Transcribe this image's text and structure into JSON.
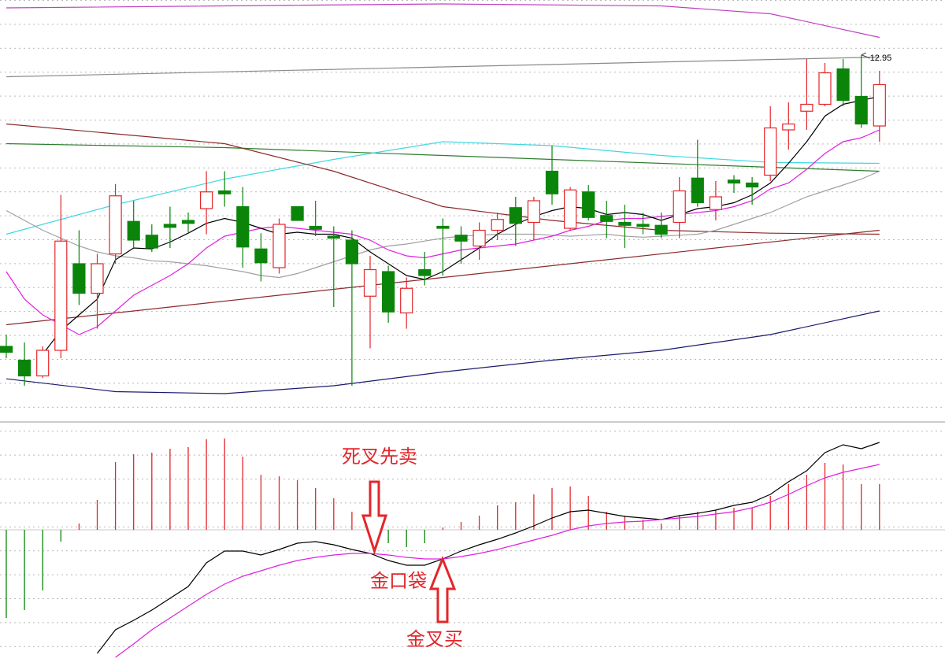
{
  "chart_data": [
    {
      "type": "candlestick",
      "categories": [
        null,
        null,
        null,
        null,
        null,
        null,
        null,
        null,
        null,
        null,
        null,
        null,
        null,
        null,
        null,
        null,
        null,
        null,
        null,
        null,
        null,
        null,
        null,
        null,
        null,
        null,
        null,
        null,
        null,
        null,
        null,
        null,
        null,
        null,
        null,
        null,
        null,
        null,
        null,
        null,
        null,
        null,
        null,
        null,
        null,
        null,
        null,
        null,
        null
      ],
      "open": [
        9.99,
        9.85,
        9.69,
        9.95,
        10.83,
        10.53,
        10.93,
        11.26,
        11.12,
        11.23,
        11.27,
        11.39,
        11.57,
        11.41,
        10.98,
        10.79,
        11.41,
        11.21,
        11.11,
        11.07,
        10.5,
        10.75,
        10.33,
        10.77,
        11.21,
        11.12,
        11.01,
        11.17,
        11.4,
        11.25,
        11.77,
        11.19,
        11.56,
        11.32,
        11.25,
        11.23,
        11.22,
        11.25,
        11.7,
        11.38,
        11.68,
        11.65,
        11.73,
        12.19,
        12.38,
        12.45,
        12.81,
        12.53,
        12.23
      ],
      "high": [
        10.11,
        10.03,
        9.99,
        11.53,
        11.17,
        10.93,
        11.64,
        11.47,
        11.23,
        11.41,
        11.35,
        11.77,
        11.77,
        11.61,
        11.14,
        11.29,
        11.41,
        11.47,
        11.21,
        11.17,
        10.91,
        10.81,
        10.69,
        10.95,
        11.29,
        11.21,
        11.25,
        11.35,
        11.51,
        11.51,
        12.03,
        11.61,
        11.63,
        11.47,
        11.43,
        11.35,
        11.35,
        11.71,
        12.09,
        11.67,
        11.73,
        11.71,
        12.43,
        12.47,
        12.91,
        12.87,
        12.91,
        12.95,
        12.79
      ],
      "low": [
        9.87,
        9.59,
        9.67,
        9.87,
        10.41,
        10.17,
        10.83,
        10.99,
        10.95,
        10.99,
        11.15,
        11.13,
        11.41,
        10.79,
        10.65,
        10.73,
        11.27,
        11.11,
        10.39,
        9.59,
        9.97,
        10.23,
        10.17,
        10.61,
        10.71,
        10.83,
        10.87,
        11.07,
        11.01,
        11.07,
        11.43,
        11.17,
        11.27,
        11.09,
        10.99,
        11.13,
        11.09,
        11.09,
        11.41,
        11.27,
        11.55,
        11.43,
        11.67,
        11.99,
        12.19,
        12.43,
        12.43,
        12.21,
        12.07
      ],
      "close": [
        9.93,
        9.69,
        9.95,
        11.06,
        10.53,
        10.83,
        11.52,
        11.07,
        10.99,
        11.2,
        11.24,
        11.56,
        11.54,
        11.0,
        10.84,
        11.23,
        11.27,
        11.18,
        11.09,
        10.83,
        10.77,
        10.34,
        10.58,
        10.71,
        11.19,
        11.06,
        11.17,
        11.28,
        11.24,
        11.47,
        11.54,
        11.58,
        11.3,
        11.26,
        11.22,
        11.21,
        11.13,
        11.57,
        11.45,
        11.51,
        11.65,
        11.61,
        12.21,
        12.25,
        12.45,
        12.77,
        12.49,
        12.25,
        12.65
      ],
      "up_color": "#e3262b",
      "down_color": "#0a850a",
      "ylim": [
        9.27,
        13.51
      ],
      "grid": true,
      "max_high": 12.95,
      "series": [
        {
          "color": "#c040c0",
          "x": [
            0,
            24,
            36,
            42,
            48
          ],
          "values": [
            13.43,
            13.47,
            13.45,
            13.37,
            13.13
          ]
        },
        {
          "color": "#8a8a8a",
          "x": [
            0,
            48
          ],
          "values": [
            12.73,
            12.93
          ]
        },
        {
          "color": "#2e7d2e",
          "x": [
            0,
            12,
            24,
            36,
            48
          ],
          "values": [
            12.05,
            12.01,
            11.93,
            11.85,
            11.77
          ]
        },
        {
          "color": "#40d8e0",
          "x": [
            0,
            6,
            12,
            18,
            24,
            30,
            36,
            42,
            48
          ],
          "values": [
            11.13,
            11.43,
            11.69,
            11.89,
            12.07,
            12.03,
            11.93,
            11.86,
            11.85
          ]
        },
        {
          "color": "#8b2a2a",
          "x": [
            0,
            6,
            12,
            18,
            24,
            30,
            36,
            42,
            48
          ],
          "values": [
            12.25,
            12.15,
            12.05,
            11.77,
            11.41,
            11.27,
            11.17,
            11.14,
            11.13
          ]
        },
        {
          "color": "#8b2a2a",
          "x": [
            0,
            24,
            48
          ],
          "values": [
            10.21,
            10.69,
            11.17
          ]
        },
        {
          "color": "#1a1a6e",
          "x": [
            0,
            6,
            12,
            18,
            24,
            30,
            36,
            42,
            48
          ],
          "values": [
            9.66,
            9.53,
            9.51,
            9.59,
            9.73,
            9.85,
            9.95,
            10.11,
            10.35
          ]
        },
        {
          "color": "#a0a0a0",
          "values": [
            11.37,
            11.27,
            11.17,
            11.09,
            11.01,
            10.95,
            10.91,
            10.89,
            10.86,
            10.85,
            10.83,
            10.81,
            10.78,
            10.75,
            10.71,
            10.69,
            10.73,
            10.79,
            10.85,
            10.91,
            10.97,
            11.01,
            11.03,
            11.06,
            11.09,
            11.11,
            11.12,
            11.13,
            11.13,
            11.13,
            11.12,
            11.11,
            11.12,
            11.13,
            11.11,
            11.1,
            11.11,
            11.12,
            11.13,
            11.17,
            11.23,
            11.29,
            11.35,
            11.43,
            11.51,
            11.57,
            11.63,
            11.69,
            11.77
          ]
        },
        {
          "color": "#e020e0",
          "values": [
            10.75,
            10.47,
            10.31,
            10.21,
            10.11,
            10.19,
            10.35,
            10.51,
            10.61,
            10.71,
            10.83,
            10.99,
            11.11,
            11.15,
            11.19,
            11.21,
            11.19,
            11.17,
            11.15,
            11.13,
            11.07,
            10.97,
            10.91,
            10.89,
            10.93,
            10.97,
            10.99,
            11.01,
            11.03,
            11.07,
            11.11,
            11.17,
            11.21,
            11.27,
            11.29,
            11.29,
            11.31,
            11.33,
            11.35,
            11.37,
            11.41,
            11.47,
            11.59,
            11.65,
            11.79,
            11.95,
            12.07,
            12.11,
            12.19
          ]
        },
        {
          "color": "#000000",
          "values": [
            null,
            null,
            9.91,
            10.15,
            10.31,
            10.47,
            10.87,
            10.99,
            10.98,
            11.05,
            11.14,
            11.24,
            11.29,
            11.25,
            11.19,
            11.13,
            11.15,
            11.13,
            11.13,
            11.09,
            10.95,
            10.83,
            10.71,
            10.67,
            10.75,
            10.87,
            10.99,
            11.13,
            11.23,
            11.31,
            11.37,
            11.41,
            11.39,
            11.33,
            11.35,
            11.33,
            11.27,
            11.33,
            11.39,
            11.41,
            11.45,
            11.53,
            11.65,
            11.85,
            12.07,
            12.33,
            12.45,
            12.49,
            12.53
          ]
        }
      ]
    },
    {
      "type": "macd",
      "values": [
        -0.112,
        -0.102,
        -0.077,
        -0.015,
        0.008,
        0.038,
        0.086,
        0.096,
        0.098,
        0.103,
        0.105,
        0.115,
        0.116,
        0.093,
        0.07,
        0.068,
        0.063,
        0.053,
        0.04,
        0.023,
        0.01,
        -0.017,
        -0.022,
        -0.017,
        0.003,
        0.01,
        0.018,
        0.031,
        0.035,
        0.045,
        0.053,
        0.055,
        0.043,
        0.023,
        0.018,
        0.013,
        0.008,
        0.018,
        0.023,
        0.025,
        0.028,
        0.028,
        0.043,
        0.058,
        0.07,
        0.085,
        0.083,
        0.058,
        0.058
      ],
      "up_color": "#e3262b",
      "down_color": "#0a850a",
      "ylim": [
        -0.173,
        0.133
      ],
      "grid": true,
      "series": [
        {
          "color": "#000000",
          "values": [
            null,
            null,
            null,
            null,
            null,
            -0.157,
            -0.127,
            -0.115,
            -0.102,
            -0.087,
            -0.072,
            -0.042,
            -0.027,
            -0.027,
            -0.032,
            -0.025,
            -0.017,
            -0.015,
            -0.019,
            -0.025,
            -0.03,
            -0.039,
            -0.045,
            -0.045,
            -0.037,
            -0.027,
            -0.019,
            -0.012,
            -0.004,
            0.005,
            0.015,
            0.023,
            0.025,
            0.021,
            0.017,
            0.015,
            0.013,
            0.018,
            0.021,
            0.025,
            0.031,
            0.035,
            0.045,
            0.061,
            0.075,
            0.098,
            0.108,
            0.103,
            0.111
          ]
        },
        {
          "color": "#e020e0",
          "values": [
            null,
            null,
            null,
            null,
            null,
            null,
            -0.162,
            -0.145,
            -0.127,
            -0.112,
            -0.097,
            -0.082,
            -0.069,
            -0.059,
            -0.052,
            -0.045,
            -0.039,
            -0.035,
            -0.032,
            -0.03,
            -0.03,
            -0.032,
            -0.035,
            -0.037,
            -0.037,
            -0.034,
            -0.03,
            -0.025,
            -0.019,
            -0.013,
            -0.007,
            0,
            0.005,
            0.008,
            0.01,
            0.011,
            0.013,
            0.015,
            0.017,
            0.02,
            0.023,
            0.028,
            0.035,
            0.045,
            0.056,
            0.066,
            0.073,
            0.078,
            0.083
          ]
        }
      ],
      "annotations": [
        "死叉先卖",
        "金口袋",
        "金叉买"
      ]
    }
  ]
}
